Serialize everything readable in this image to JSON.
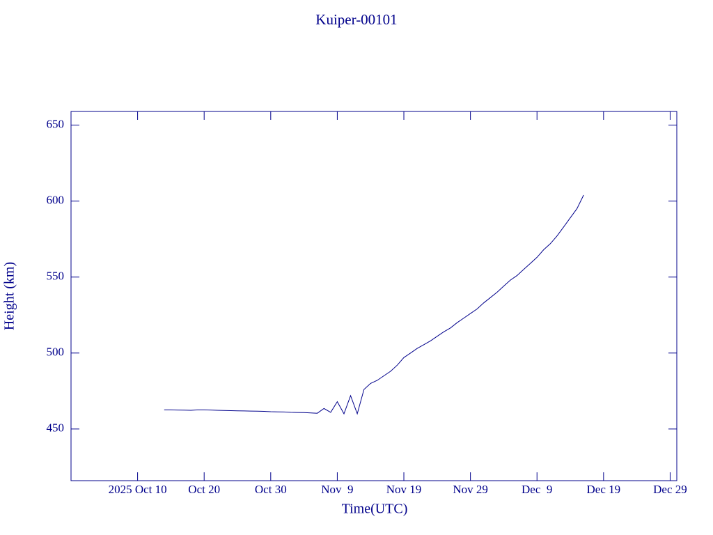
{
  "chart_data": {
    "type": "line",
    "title": "Kuiper-00101",
    "x_label": "Time(UTC)",
    "y_label": "Height (km)",
    "x": [
      "2025-10-14",
      "2025-10-15",
      "2025-10-16",
      "2025-10-17",
      "2025-10-18",
      "2025-10-19",
      "2025-10-20",
      "2025-10-21",
      "2025-10-22",
      "2025-10-23",
      "2025-10-24",
      "2025-10-25",
      "2025-10-26",
      "2025-10-27",
      "2025-10-28",
      "2025-10-29",
      "2025-10-30",
      "2025-10-31",
      "2025-11-01",
      "2025-11-02",
      "2025-11-03",
      "2025-11-04",
      "2025-11-05",
      "2025-11-06",
      "2025-11-07",
      "2025-11-08",
      "2025-11-09",
      "2025-11-10",
      "2025-11-11",
      "2025-11-12",
      "2025-11-13",
      "2025-11-14",
      "2025-11-15",
      "2025-11-16",
      "2025-11-17",
      "2025-11-18",
      "2025-11-19",
      "2025-11-20",
      "2025-11-21",
      "2025-11-22",
      "2025-11-23",
      "2025-11-24",
      "2025-11-25",
      "2025-11-26",
      "2025-11-27",
      "2025-11-28",
      "2025-11-29",
      "2025-11-30",
      "2025-12-01",
      "2025-12-02",
      "2025-12-03",
      "2025-12-04",
      "2025-12-05",
      "2025-12-06",
      "2025-12-07",
      "2025-12-08",
      "2025-12-09",
      "2025-12-10",
      "2025-12-11",
      "2025-12-12",
      "2025-12-13",
      "2025-12-14",
      "2025-12-15",
      "2025-12-16"
    ],
    "series": [
      {
        "color": "#00008b",
        "values": [
          462.6,
          462.6,
          462.5,
          462.4,
          462.3,
          462.6,
          462.6,
          462.5,
          462.3,
          462.2,
          462.1,
          462.0,
          461.9,
          461.8,
          461.7,
          461.6,
          461.4,
          461.3,
          461.2,
          461.0,
          460.9,
          460.8,
          460.6,
          460.4,
          463.5,
          461,
          468,
          460,
          472,
          460,
          476,
          480,
          482,
          485,
          488,
          492,
          497,
          500,
          503,
          505.5,
          508,
          511,
          514,
          516.5,
          520,
          523,
          526,
          529,
          533,
          536.5,
          540,
          544,
          548,
          551,
          555,
          559,
          563,
          568,
          572,
          577,
          583,
          589,
          595,
          604
        ]
      }
    ],
    "xlim": [
      "2025-09-30",
      "2025-12-30"
    ],
    "xticks": [
      {
        "value": "2025-10-10",
        "label": "2025 Oct 10"
      },
      {
        "value": "2025-10-20",
        "label": "Oct 20"
      },
      {
        "value": "2025-10-30",
        "label": "Oct 30"
      },
      {
        "value": "2025-11-09",
        "label": "Nov  9"
      },
      {
        "value": "2025-11-19",
        "label": "Nov 19"
      },
      {
        "value": "2025-11-29",
        "label": "Nov 29"
      },
      {
        "value": "2025-12-09",
        "label": "Dec  9"
      },
      {
        "value": "2025-12-19",
        "label": "Dec 19"
      },
      {
        "value": "2025-12-29",
        "label": "Dec 29"
      }
    ],
    "ylim": [
      416,
      659
    ],
    "yticks": [
      450,
      500,
      550,
      600,
      650
    ]
  }
}
